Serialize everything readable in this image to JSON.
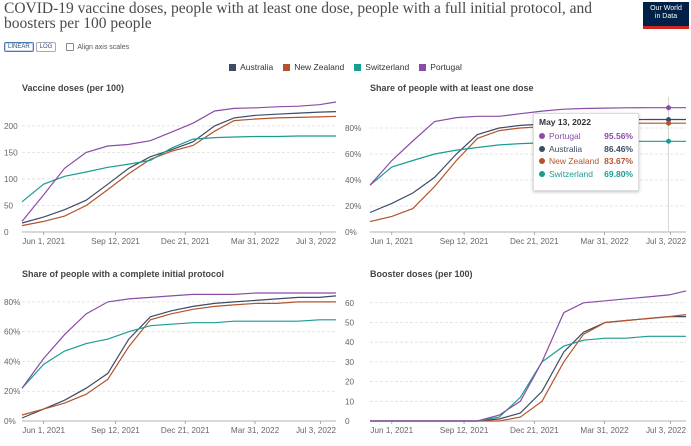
{
  "title": "COVID-19 vaccine doses, people with at least one dose, people with a full initial protocol, and boosters per 100 people",
  "logo": {
    "line1": "Our World",
    "line2": "in Data"
  },
  "controls": {
    "linear": "LINEAR",
    "log": "LOG",
    "align": "Align axis scales"
  },
  "colors": {
    "Australia": "#3d4b66",
    "New Zealand": "#b5532c",
    "Switzerland": "#1a9c93",
    "Portugal": "#8a4ca6"
  },
  "legend": [
    {
      "name": "Australia",
      "color": "#3d4b66"
    },
    {
      "name": "New Zealand",
      "color": "#b5532c"
    },
    {
      "name": "Switzerland",
      "color": "#1a9c93"
    },
    {
      "name": "Portugal",
      "color": "#8a4ca6"
    }
  ],
  "x_ticks": [
    "Jun 1, 2021",
    "Sep 12, 2021",
    "Dec 21, 2021",
    "Mar 31, 2022",
    "Jul 3, 2022"
  ],
  "tooltip": {
    "date": "May 13, 2022",
    "rows": [
      {
        "name": "Portugal",
        "value": "95.56%",
        "color": "#8a4ca6"
      },
      {
        "name": "Australia",
        "value": "86.46%",
        "color": "#3d4b66"
      },
      {
        "name": "New Zealand",
        "value": "83.67%",
        "color": "#b5532c"
      },
      {
        "name": "Switzerland",
        "value": "69.80%",
        "color": "#1a9c93"
      }
    ]
  },
  "chart_data": [
    {
      "type": "line",
      "title": "Vaccine doses (per 100)",
      "x": [
        "2021-05-01",
        "2021-06-01",
        "2021-07-01",
        "2021-08-01",
        "2021-09-01",
        "2021-10-01",
        "2021-11-01",
        "2021-12-01",
        "2022-01-01",
        "2022-02-01",
        "2022-03-01",
        "2022-04-01",
        "2022-05-01",
        "2022-06-01",
        "2022-07-01",
        "2022-07-25"
      ],
      "y_ticks": [
        "0",
        "50",
        "100",
        "150",
        "200"
      ],
      "ylim": [
        0,
        245
      ],
      "series": [
        {
          "name": "Australia",
          "values": [
            17,
            28,
            42,
            60,
            90,
            120,
            142,
            155,
            170,
            200,
            215,
            220,
            222,
            224,
            226,
            227
          ]
        },
        {
          "name": "New Zealand",
          "values": [
            12,
            20,
            30,
            50,
            80,
            110,
            137,
            152,
            163,
            190,
            210,
            213,
            215,
            216,
            217,
            218
          ]
        },
        {
          "name": "Switzerland",
          "values": [
            57,
            90,
            105,
            113,
            122,
            128,
            135,
            158,
            175,
            178,
            179,
            180,
            180,
            181,
            181,
            181
          ]
        },
        {
          "name": "Portugal",
          "values": [
            20,
            70,
            120,
            150,
            162,
            165,
            172,
            188,
            205,
            228,
            233,
            234,
            236,
            237,
            240,
            245
          ]
        }
      ]
    },
    {
      "type": "line",
      "title": "Share of people with at least one dose",
      "x": [
        "2021-05-01",
        "2021-06-01",
        "2021-07-01",
        "2021-08-01",
        "2021-09-01",
        "2021-10-01",
        "2021-11-01",
        "2021-12-01",
        "2022-01-01",
        "2022-02-01",
        "2022-03-01",
        "2022-04-01",
        "2022-05-01",
        "2022-06-01",
        "2022-07-01",
        "2022-07-25"
      ],
      "y_ticks": [
        "0%",
        "20%",
        "40%",
        "60%",
        "80%"
      ],
      "ylim": [
        0,
        100
      ],
      "series": [
        {
          "name": "Australia",
          "values": [
            15,
            22,
            30,
            42,
            60,
            75,
            80,
            82,
            83,
            84,
            85,
            86,
            86.46,
            86.5,
            86.5,
            86.5
          ]
        },
        {
          "name": "New Zealand",
          "values": [
            8,
            12,
            18,
            35,
            55,
            72,
            78,
            80,
            81,
            82,
            83,
            83.5,
            83.67,
            83.7,
            83.7,
            83.7
          ]
        },
        {
          "name": "Switzerland",
          "values": [
            36,
            50,
            55,
            60,
            63,
            65,
            67,
            68,
            68.5,
            69,
            69.5,
            69.7,
            69.8,
            69.8,
            69.8,
            69.8
          ]
        },
        {
          "name": "Portugal",
          "values": [
            36,
            55,
            70,
            85,
            88,
            89,
            89,
            91,
            93,
            94.5,
            95,
            95.3,
            95.56,
            95.6,
            95.6,
            95.6
          ]
        }
      ]
    },
    {
      "type": "line",
      "title": "Share of people with a complete initial protocol",
      "x": [
        "2021-05-01",
        "2021-06-01",
        "2021-07-01",
        "2021-08-01",
        "2021-09-01",
        "2021-10-01",
        "2021-11-01",
        "2021-12-01",
        "2022-01-01",
        "2022-02-01",
        "2022-03-01",
        "2022-04-01",
        "2022-05-01",
        "2022-06-01",
        "2022-07-01",
        "2022-07-25"
      ],
      "y_ticks": [
        "0%",
        "20%",
        "40%",
        "60%",
        "80%"
      ],
      "ylim": [
        0,
        90
      ],
      "series": [
        {
          "name": "Australia",
          "values": [
            2,
            8,
            14,
            22,
            32,
            55,
            70,
            74,
            77,
            79,
            80,
            81,
            82,
            83,
            83,
            84
          ]
        },
        {
          "name": "New Zealand",
          "values": [
            4,
            8,
            12,
            18,
            28,
            50,
            68,
            72,
            75,
            77,
            78,
            79,
            79,
            80,
            80,
            80
          ]
        },
        {
          "name": "Switzerland",
          "values": [
            22,
            38,
            47,
            52,
            55,
            60,
            64,
            65,
            66,
            66,
            67,
            67,
            67,
            67,
            68,
            68
          ]
        },
        {
          "name": "Portugal",
          "values": [
            22,
            42,
            58,
            72,
            80,
            82,
            83,
            84,
            85,
            85,
            85,
            86,
            86,
            86,
            86,
            86
          ]
        }
      ]
    },
    {
      "type": "line",
      "title": "Booster doses (per 100)",
      "x": [
        "2021-05-01",
        "2021-06-01",
        "2021-07-01",
        "2021-08-01",
        "2021-09-01",
        "2021-10-01",
        "2021-11-01",
        "2021-12-01",
        "2022-01-01",
        "2022-02-01",
        "2022-03-01",
        "2022-04-01",
        "2022-05-01",
        "2022-06-01",
        "2022-07-01",
        "2022-07-25"
      ],
      "y_ticks": [
        "0",
        "10",
        "20",
        "30",
        "40",
        "50",
        "60"
      ],
      "ylim": [
        0,
        68
      ],
      "series": [
        {
          "name": "Australia",
          "values": [
            0,
            0,
            0,
            0,
            0,
            0,
            1,
            4,
            15,
            35,
            45,
            50,
            51,
            52,
            53,
            53
          ]
        },
        {
          "name": "New Zealand",
          "values": [
            0,
            0,
            0,
            0,
            0,
            0,
            0,
            2,
            10,
            30,
            44,
            50,
            51,
            52,
            53,
            54
          ]
        },
        {
          "name": "Switzerland",
          "values": [
            0,
            0,
            0,
            0,
            0,
            0,
            2,
            12,
            30,
            38,
            41,
            42,
            42,
            43,
            43,
            43
          ]
        },
        {
          "name": "Portugal",
          "values": [
            0,
            0,
            0,
            0,
            0,
            0,
            3,
            10,
            30,
            55,
            60,
            61,
            62,
            63,
            64,
            66
          ]
        }
      ]
    }
  ]
}
